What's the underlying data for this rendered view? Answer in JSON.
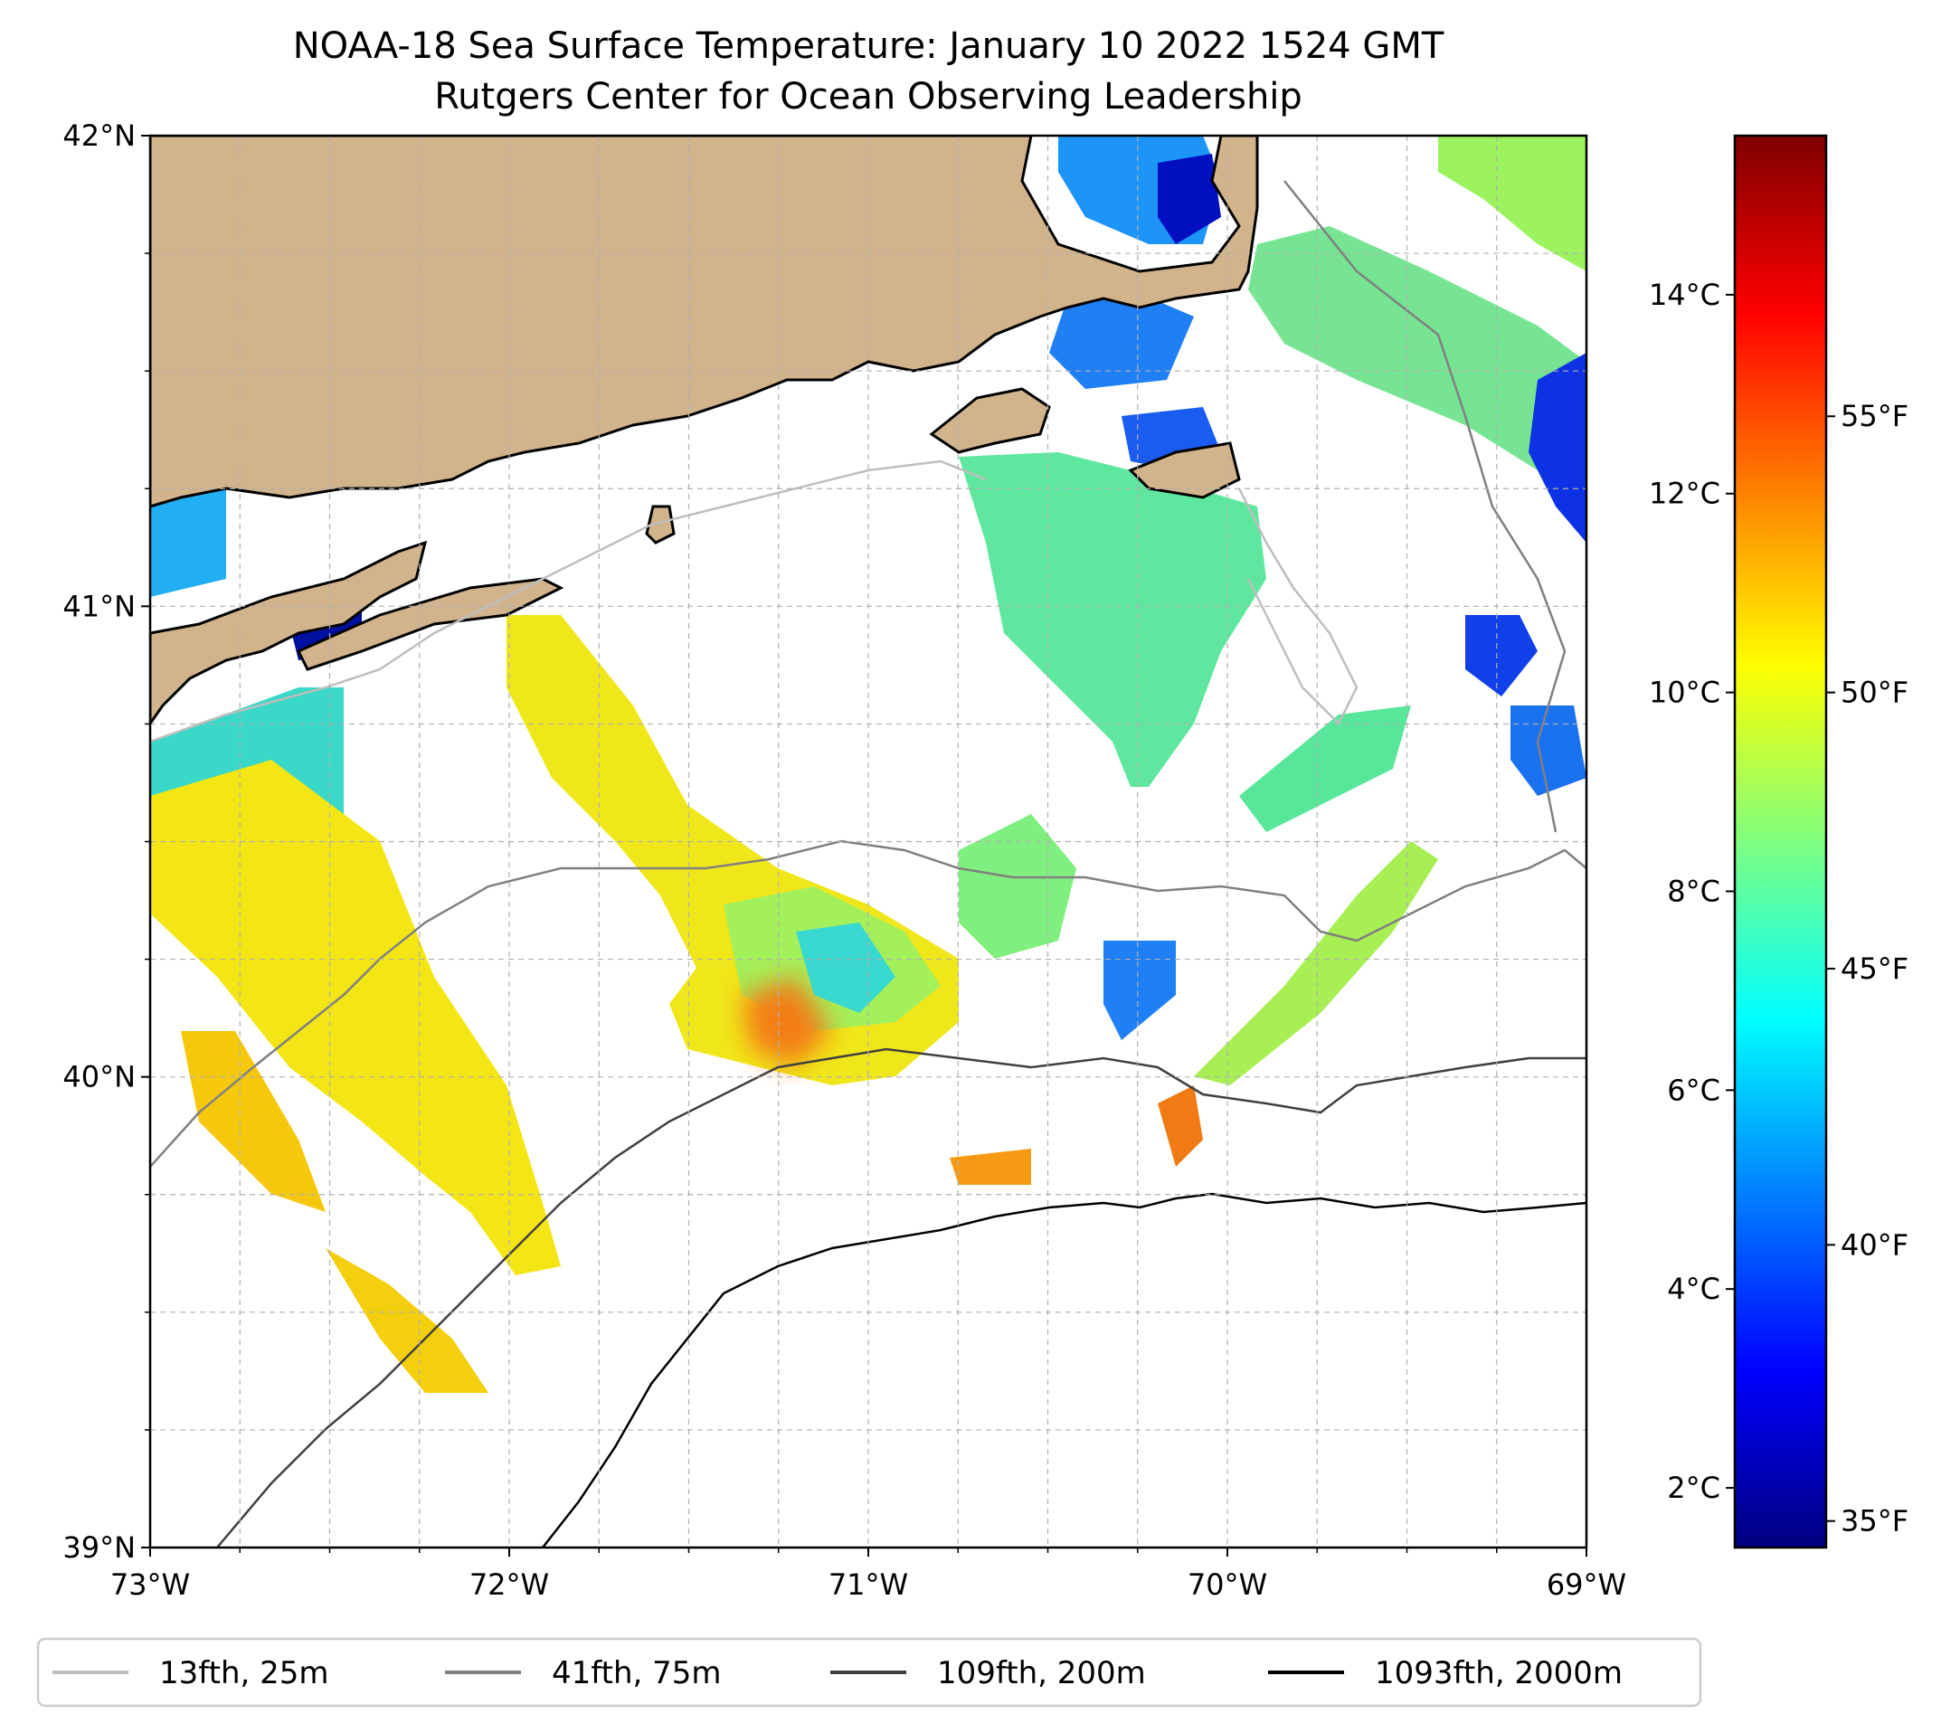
{
  "title": {
    "line1": "NOAA-18 Sea Surface Temperature: January 10 2022 1524 GMT",
    "line2": "Rutgers Center for Ocean Observing Leadership"
  },
  "map": {
    "lon_range": [
      -73,
      -69
    ],
    "lat_range": [
      39,
      42
    ],
    "lon_ticks": [
      {
        "value": -73,
        "label": "73°W"
      },
      {
        "value": -72,
        "label": "72°W"
      },
      {
        "value": -71,
        "label": "71°W"
      },
      {
        "value": -70,
        "label": "70°W"
      },
      {
        "value": -69,
        "label": "69°W"
      }
    ],
    "lat_ticks": [
      {
        "value": 42,
        "label": "42°N"
      },
      {
        "value": 41,
        "label": "41°N"
      },
      {
        "value": 40,
        "label": "40°N"
      },
      {
        "value": 39,
        "label": "39°N"
      }
    ],
    "land_color": "#d2b48c",
    "sst_patches": [
      {
        "name": "cape-cod-bay",
        "lon": -70.4,
        "lat": 41.85,
        "temp_c": 4.0
      },
      {
        "name": "western-long-island-sound",
        "lon": -72.85,
        "lat": 41.2,
        "temp_c": 5.5
      },
      {
        "name": "peconic-bay",
        "lon": -72.45,
        "lat": 40.95,
        "temp_c": 2.0
      },
      {
        "name": "nantucket-sound",
        "lon": -70.25,
        "lat": 41.45,
        "temp_c": 4.5
      },
      {
        "name": "south-of-nantucket",
        "lon": -70.3,
        "lat": 41.05,
        "temp_c": 7.5
      },
      {
        "name": "georges-west",
        "lon": -69.55,
        "lat": 41.55,
        "temp_c": 8.0
      },
      {
        "name": "long-island-shelf",
        "lon": -72.55,
        "lat": 40.35,
        "temp_c": 10.8
      },
      {
        "name": "shelf-central",
        "lon": -71.3,
        "lat": 40.2,
        "temp_c": 9.5
      },
      {
        "name": "shelf-break-warm",
        "lon": -71.25,
        "lat": 40.1,
        "temp_c": 12.5
      },
      {
        "name": "southern-slope",
        "lon": -72.25,
        "lat": 39.55,
        "temp_c": 11.5
      }
    ]
  },
  "colorbar": {
    "celsius_ticks": [
      {
        "value": 2,
        "label": "2°C"
      },
      {
        "value": 4,
        "label": "4°C"
      },
      {
        "value": 6,
        "label": "6°C"
      },
      {
        "value": 8,
        "label": "8°C"
      },
      {
        "value": 10,
        "label": "10°C"
      },
      {
        "value": 12,
        "label": "12°C"
      },
      {
        "value": 14,
        "label": "14°C"
      }
    ],
    "fahrenheit_ticks": [
      {
        "value": 35,
        "label": "35°F"
      },
      {
        "value": 40,
        "label": "40°F"
      },
      {
        "value": 45,
        "label": "45°F"
      },
      {
        "value": 50,
        "label": "50°F"
      },
      {
        "value": 55,
        "label": "55°F"
      }
    ],
    "range_c": [
      1.4,
      15.6
    ],
    "colormap": [
      "#00007f",
      "#0000ff",
      "#007fff",
      "#00ffff",
      "#7fff7f",
      "#ffff00",
      "#ff7f00",
      "#ff0000",
      "#7f0000"
    ]
  },
  "legend": {
    "items": [
      {
        "label": "13fth, 25m",
        "color": "#bebebe"
      },
      {
        "label": "41fth, 75m",
        "color": "#808080"
      },
      {
        "label": "109fth, 200m",
        "color": "#404040"
      },
      {
        "label": "1093fth, 2000m",
        "color": "#000000"
      }
    ]
  }
}
